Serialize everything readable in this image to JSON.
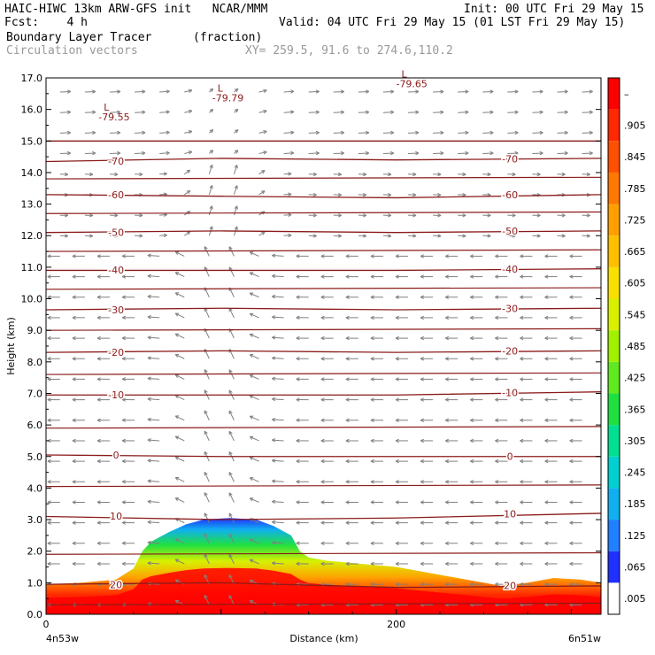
{
  "header": {
    "line1_left": "HAIC-HIWC 13km ARW-GFS init   NCAR/MMM",
    "line1_right": "Init: 00 UTC Fri 29 May 15",
    "line2_left": "Fcst:    4 h",
    "line2_right": "Valid: 04 UTC Fri 29 May 15 (01 LST Fri 29 May 15)",
    "line3_left": "Boundary Layer Tracer",
    "line3_mid": "(fraction)",
    "line4_left": "Circulation vectors",
    "line4_mid": "XY= 259.5, 91.6 to 274.6,110.2"
  },
  "chart_data": {
    "type": "heatmap",
    "xlabel": "Distance (km)",
    "ylabel": "Height (km)",
    "xlim": [
      0,
      317
    ],
    "ylim": [
      0,
      17
    ],
    "yticks": [
      "0.0",
      "1.0",
      "2.0",
      "3.0",
      "4.0",
      "5.0",
      "6.0",
      "7.0",
      "8.0",
      "9.0",
      "10.0",
      "11.0",
      "12.0",
      "13.0",
      "14.0",
      "15.0",
      "16.0",
      "17.0"
    ],
    "xticks": [
      {
        "x": 0,
        "label": "0"
      },
      {
        "x": 200,
        "label": "200"
      }
    ],
    "x_endpoint_labels": {
      "left": "4n53w",
      "right": "6n51w"
    },
    "colorbar": {
      "labels": [
        ".005",
        ".065",
        ".125",
        ".185",
        ".245",
        ".305",
        ".365",
        ".425",
        ".485",
        ".545",
        ".605",
        ".665",
        ".725",
        ".785",
        ".845",
        ".905",
        "–"
      ],
      "colors": [
        "#ffffff",
        "#2030ff",
        "#2080ff",
        "#10b0f0",
        "#00d0d0",
        "#00e090",
        "#20e040",
        "#60e820",
        "#a0f000",
        "#d8f000",
        "#f8e000",
        "#ffc000",
        "#ffa000",
        "#ff7800",
        "#ff5000",
        "#ff2800",
        "#ff0000"
      ]
    },
    "tracer_top_km": [
      [
        0,
        0.95
      ],
      [
        20,
        1.0
      ],
      [
        40,
        1.1
      ],
      [
        50,
        1.45
      ],
      [
        55,
        2.0
      ],
      [
        60,
        2.3
      ],
      [
        70,
        2.6
      ],
      [
        80,
        2.85
      ],
      [
        90,
        3.0
      ],
      [
        105,
        3.05
      ],
      [
        120,
        3.0
      ],
      [
        130,
        2.8
      ],
      [
        140,
        2.5
      ],
      [
        145,
        2.0
      ],
      [
        150,
        1.8
      ],
      [
        160,
        1.7
      ],
      [
        180,
        1.6
      ],
      [
        200,
        1.5
      ],
      [
        220,
        1.3
      ],
      [
        240,
        1.1
      ],
      [
        260,
        0.9
      ],
      [
        275,
        1.0
      ],
      [
        290,
        1.15
      ],
      [
        305,
        1.1
      ],
      [
        317,
        1.0
      ]
    ],
    "temperature_contours": [
      {
        "label": "20",
        "points": [
          [
            0,
            0.95
          ],
          [
            100,
            1.0
          ],
          [
            200,
            0.85
          ],
          [
            317,
            0.9
          ]
        ]
      },
      {
        "label": "10",
        "points": [
          [
            0,
            3.1
          ],
          [
            100,
            3.0
          ],
          [
            200,
            3.05
          ],
          [
            317,
            3.2
          ]
        ]
      },
      {
        "label": "0",
        "points": [
          [
            0,
            5.05
          ],
          [
            100,
            5.0
          ],
          [
            200,
            5.0
          ],
          [
            317,
            5.0
          ]
        ]
      },
      {
        "label": "-10",
        "points": [
          [
            0,
            6.95
          ],
          [
            100,
            6.95
          ],
          [
            200,
            6.95
          ],
          [
            317,
            7.05
          ]
        ]
      },
      {
        "label": "-20",
        "points": [
          [
            0,
            8.3
          ],
          [
            100,
            8.35
          ],
          [
            200,
            8.3
          ],
          [
            317,
            8.35
          ]
        ]
      },
      {
        "label": "-30",
        "points": [
          [
            0,
            9.65
          ],
          [
            100,
            9.7
          ],
          [
            200,
            9.65
          ],
          [
            317,
            9.7
          ]
        ]
      },
      {
        "label": "-40",
        "points": [
          [
            0,
            10.9
          ],
          [
            100,
            10.9
          ],
          [
            200,
            10.9
          ],
          [
            317,
            10.95
          ]
        ]
      },
      {
        "label": "-50",
        "points": [
          [
            0,
            12.1
          ],
          [
            100,
            12.15
          ],
          [
            200,
            12.1
          ],
          [
            317,
            12.15
          ]
        ]
      },
      {
        "label": "-60",
        "points": [
          [
            0,
            13.3
          ],
          [
            100,
            13.25
          ],
          [
            200,
            13.2
          ],
          [
            317,
            13.3
          ]
        ]
      },
      {
        "label": "-70",
        "points": [
          [
            0,
            14.35
          ],
          [
            100,
            14.45
          ],
          [
            200,
            14.4
          ],
          [
            317,
            14.45
          ]
        ]
      },
      {
        "label": "",
        "points": [
          [
            0,
            15.0
          ],
          [
            100,
            15.0
          ],
          [
            200,
            15.0
          ],
          [
            317,
            15.0
          ]
        ]
      }
    ],
    "unlabeled_contour_levels_km": [
      0.3,
      1.9,
      4.05,
      5.9,
      7.6,
      9.0,
      10.3,
      11.5,
      12.7,
      13.8
    ],
    "low_markers": [
      {
        "x": 35,
        "y": 15.8,
        "mark": "L",
        "label": "-79.55"
      },
      {
        "x": 100,
        "y": 16.4,
        "mark": "L",
        "label": "-79.79"
      },
      {
        "x": 205,
        "y": 16.85,
        "mark": "L",
        "label": "-79.65"
      }
    ],
    "vectors": "circulation",
    "grid": false
  }
}
